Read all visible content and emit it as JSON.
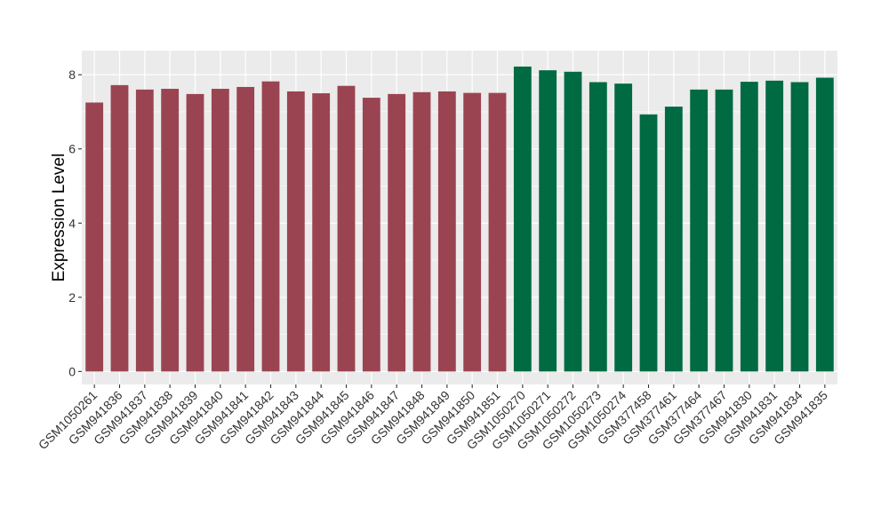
{
  "chart_data": {
    "type": "bar",
    "title": "",
    "xlabel": "",
    "ylabel": "Expression Level",
    "ylim": [
      -0.35,
      8.65
    ],
    "yticks": [
      0,
      2,
      4,
      6,
      8
    ],
    "grid": true,
    "legend": "none",
    "colors": {
      "panel_bg": "#ebebeb",
      "grid": "#ffffff",
      "group1": "#9b4451",
      "group2": "#006a43"
    },
    "categories": [
      "GSM1050261",
      "GSM941836",
      "GSM941837",
      "GSM941838",
      "GSM941839",
      "GSM941840",
      "GSM941841",
      "GSM941842",
      "GSM941843",
      "GSM941844",
      "GSM941845",
      "GSM941846",
      "GSM941847",
      "GSM941848",
      "GSM941849",
      "GSM941850",
      "GSM941851",
      "GSM1050270",
      "GSM1050271",
      "GSM1050272",
      "GSM1050273",
      "GSM1050274",
      "GSM377458",
      "GSM377461",
      "GSM377464",
      "GSM377467",
      "GSM941830",
      "GSM941831",
      "GSM941834",
      "GSM941835"
    ],
    "values": [
      7.25,
      7.72,
      7.6,
      7.62,
      7.48,
      7.62,
      7.67,
      7.82,
      7.55,
      7.5,
      7.7,
      7.38,
      7.48,
      7.53,
      7.55,
      7.51,
      7.51,
      8.22,
      8.12,
      8.08,
      7.8,
      7.76,
      6.93,
      7.14,
      7.6,
      7.6,
      7.81,
      7.84,
      7.8,
      7.92
    ],
    "bar_colors": [
      "#9b4451",
      "#9b4451",
      "#9b4451",
      "#9b4451",
      "#9b4451",
      "#9b4451",
      "#9b4451",
      "#9b4451",
      "#9b4451",
      "#9b4451",
      "#9b4451",
      "#9b4451",
      "#9b4451",
      "#9b4451",
      "#9b4451",
      "#9b4451",
      "#9b4451",
      "#006a43",
      "#006a43",
      "#006a43",
      "#006a43",
      "#006a43",
      "#006a43",
      "#006a43",
      "#006a43",
      "#006a43",
      "#006a43",
      "#006a43",
      "#006a43",
      "#006a43"
    ]
  }
}
